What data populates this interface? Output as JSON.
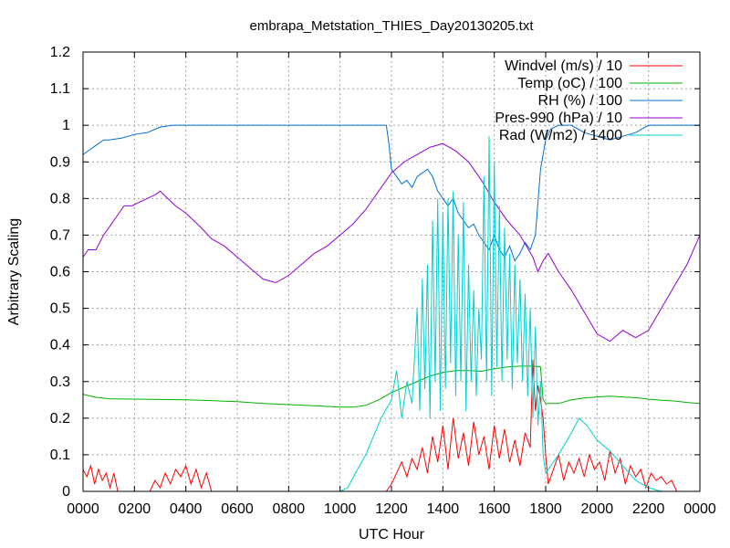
{
  "chart_data": {
    "type": "line",
    "title": "embrapa_Metstation_THIES_Day20130205.txt",
    "xlabel": "UTC Hour",
    "ylabel": "Arbitrary Scaling",
    "xlim": [
      0,
      24
    ],
    "ylim": [
      0,
      1.2
    ],
    "grid": true,
    "legend_position": "top-right",
    "x_ticks": [
      0,
      2,
      4,
      6,
      8,
      10,
      12,
      14,
      16,
      18,
      20,
      22,
      24
    ],
    "x_tick_labels": [
      "0000",
      "0200",
      "0400",
      "0600",
      "0800",
      "1000",
      "1200",
      "1400",
      "1600",
      "1800",
      "2000",
      "2200",
      "0000"
    ],
    "y_ticks": [
      0,
      0.1,
      0.2,
      0.3,
      0.4,
      0.5,
      0.6,
      0.7,
      0.8,
      0.9,
      1,
      1.1,
      1.2
    ],
    "y_tick_labels": [
      "0",
      "0.1",
      "0.2",
      "0.3",
      "0.4",
      "0.5",
      "0.6",
      "0.7",
      "0.8",
      "0.9",
      "1",
      "1.1",
      "1.2"
    ],
    "colors": {
      "axis": "#000000",
      "grid": "#a0a0a0",
      "windvel": "#ff0000",
      "temp": "#00b000",
      "rh": "#0070d0",
      "pres": "#9400d3",
      "rad": "#00d0d0"
    },
    "series": [
      {
        "key": "windvel",
        "name": "Windvel (m/s) / 10",
        "x": [
          0.0,
          0.15,
          0.3,
          0.45,
          0.6,
          0.75,
          0.9,
          1.05,
          1.2,
          1.35,
          2.6,
          2.8,
          3.0,
          3.2,
          3.4,
          3.6,
          3.8,
          4.0,
          4.2,
          4.4,
          4.6,
          4.8,
          5.0,
          11.8,
          12.0,
          12.2,
          12.4,
          12.6,
          12.8,
          13.0,
          13.2,
          13.4,
          13.6,
          13.8,
          14.0,
          14.2,
          14.4,
          14.6,
          14.8,
          15.0,
          15.2,
          15.4,
          15.6,
          15.8,
          16.0,
          16.2,
          16.4,
          16.6,
          16.8,
          17.0,
          17.2,
          17.4,
          17.5,
          17.6,
          17.7,
          17.8,
          17.9,
          18.0,
          18.1,
          18.3,
          18.5,
          18.7,
          18.9,
          19.1,
          19.3,
          19.5,
          19.7,
          19.9,
          20.1,
          20.3,
          20.5,
          20.7,
          20.9,
          21.1,
          21.3,
          21.5,
          21.7,
          21.9,
          22.1,
          22.3,
          22.5,
          22.7,
          22.9,
          23.1,
          23.3,
          23.5,
          23.7,
          24.0
        ],
        "y": [
          0.06,
          0.04,
          0.07,
          0.02,
          0.06,
          0.03,
          0.05,
          0.01,
          0.05,
          0.0,
          0.0,
          0.03,
          0.01,
          0.05,
          0.02,
          0.06,
          0.04,
          0.07,
          0.02,
          0.06,
          0.01,
          0.05,
          0.0,
          0.0,
          0.02,
          0.05,
          0.08,
          0.04,
          0.09,
          0.06,
          0.12,
          0.05,
          0.15,
          0.08,
          0.18,
          0.06,
          0.2,
          0.09,
          0.16,
          0.07,
          0.19,
          0.1,
          0.15,
          0.06,
          0.18,
          0.09,
          0.17,
          0.08,
          0.14,
          0.07,
          0.16,
          0.12,
          0.36,
          0.22,
          0.29,
          0.25,
          0.2,
          0.1,
          0.02,
          0.06,
          0.1,
          0.03,
          0.08,
          0.05,
          0.09,
          0.04,
          0.1,
          0.06,
          0.08,
          0.03,
          0.11,
          0.05,
          0.09,
          0.02,
          0.07,
          0.04,
          0.06,
          0.01,
          0.05,
          0.03,
          0.04,
          0.02,
          0.03,
          0.0,
          0.0,
          0.0,
          0.0,
          0.0
        ]
      },
      {
        "key": "temp",
        "name": "Temp (oC) / 100",
        "x": [
          0.0,
          0.5,
          1.0,
          2.0,
          3.0,
          4.0,
          5.0,
          6.0,
          7.0,
          8.0,
          9.0,
          10.0,
          10.5,
          11.0,
          11.5,
          12.0,
          12.5,
          13.0,
          13.5,
          14.0,
          14.5,
          15.0,
          15.5,
          16.0,
          16.5,
          17.0,
          17.5,
          17.8,
          17.9,
          18.0,
          18.5,
          19.0,
          19.5,
          20.0,
          20.5,
          21.0,
          21.5,
          22.0,
          22.5,
          23.0,
          23.5,
          24.0
        ],
        "y": [
          0.265,
          0.257,
          0.253,
          0.252,
          0.251,
          0.25,
          0.248,
          0.245,
          0.24,
          0.237,
          0.234,
          0.23,
          0.23,
          0.235,
          0.25,
          0.27,
          0.285,
          0.3,
          0.315,
          0.325,
          0.33,
          0.33,
          0.328,
          0.335,
          0.34,
          0.342,
          0.342,
          0.34,
          0.25,
          0.24,
          0.24,
          0.25,
          0.255,
          0.258,
          0.26,
          0.258,
          0.256,
          0.252,
          0.249,
          0.247,
          0.243,
          0.24
        ]
      },
      {
        "key": "rh",
        "name": "RH (%) / 100",
        "x": [
          0.0,
          0.2,
          0.4,
          0.6,
          0.8,
          1.0,
          1.5,
          2.0,
          2.5,
          3.0,
          3.5,
          4.0,
          5.0,
          6.0,
          7.0,
          8.0,
          9.0,
          10.0,
          11.0,
          11.8,
          11.9,
          12.0,
          12.2,
          12.4,
          12.6,
          12.8,
          13.0,
          13.2,
          13.4,
          13.6,
          13.8,
          14.0,
          14.2,
          14.4,
          14.6,
          14.8,
          15.0,
          15.2,
          15.4,
          15.6,
          15.8,
          16.0,
          16.2,
          16.4,
          16.6,
          16.8,
          17.0,
          17.2,
          17.4,
          17.6,
          17.8,
          18.0,
          18.2,
          18.5,
          19.0,
          19.5,
          20.0,
          20.5,
          21.0,
          21.5,
          22.0,
          22.5,
          23.0,
          23.5,
          24.0
        ],
        "y": [
          0.92,
          0.93,
          0.94,
          0.95,
          0.96,
          0.96,
          0.965,
          0.975,
          0.98,
          0.995,
          1.0,
          1.0,
          1.0,
          1.0,
          1.0,
          1.0,
          1.0,
          1.0,
          1.0,
          1.0,
          0.95,
          0.88,
          0.86,
          0.84,
          0.85,
          0.83,
          0.86,
          0.87,
          0.88,
          0.86,
          0.82,
          0.8,
          0.78,
          0.8,
          0.76,
          0.74,
          0.72,
          0.73,
          0.7,
          0.68,
          0.66,
          0.7,
          0.66,
          0.64,
          0.67,
          0.63,
          0.65,
          0.68,
          0.66,
          0.7,
          0.88,
          0.96,
          0.99,
          1.0,
          1.0,
          0.98,
          0.97,
          0.96,
          0.97,
          0.98,
          1.0,
          1.0,
          1.0,
          1.0,
          1.0
        ]
      },
      {
        "key": "pres",
        "name": "Pres-990 (hPa) / 10",
        "x": [
          0.0,
          0.2,
          0.5,
          0.8,
          1.0,
          1.3,
          1.6,
          1.9,
          2.2,
          2.5,
          2.8,
          3.0,
          3.3,
          3.6,
          4.0,
          4.3,
          4.6,
          5.0,
          5.5,
          6.0,
          6.5,
          7.0,
          7.5,
          8.0,
          8.5,
          9.0,
          9.5,
          10.0,
          10.5,
          11.0,
          11.5,
          12.0,
          12.5,
          13.0,
          13.5,
          14.0,
          14.5,
          15.0,
          15.5,
          16.0,
          16.5,
          17.0,
          17.5,
          17.7,
          17.9,
          18.1,
          18.5,
          19.0,
          19.5,
          20.0,
          20.5,
          21.0,
          21.5,
          22.0,
          22.5,
          23.0,
          23.5,
          24.0
        ],
        "y": [
          0.64,
          0.66,
          0.66,
          0.7,
          0.72,
          0.75,
          0.78,
          0.78,
          0.79,
          0.8,
          0.81,
          0.82,
          0.8,
          0.78,
          0.76,
          0.74,
          0.72,
          0.69,
          0.67,
          0.64,
          0.61,
          0.58,
          0.57,
          0.59,
          0.62,
          0.65,
          0.67,
          0.7,
          0.73,
          0.77,
          0.82,
          0.87,
          0.9,
          0.92,
          0.94,
          0.95,
          0.93,
          0.9,
          0.85,
          0.79,
          0.74,
          0.7,
          0.64,
          0.6,
          0.63,
          0.65,
          0.6,
          0.55,
          0.49,
          0.43,
          0.41,
          0.44,
          0.42,
          0.44,
          0.5,
          0.56,
          0.62,
          0.7
        ]
      },
      {
        "key": "rad",
        "name": "Rad (W/m2) / 1400",
        "x": [
          0.0,
          10.0,
          10.3,
          10.6,
          11.0,
          11.3,
          11.6,
          12.0,
          12.2,
          12.4,
          12.6,
          12.8,
          13.0,
          13.1,
          13.2,
          13.3,
          13.4,
          13.5,
          13.6,
          13.7,
          13.8,
          13.9,
          14.0,
          14.1,
          14.2,
          14.3,
          14.4,
          14.5,
          14.6,
          14.7,
          14.8,
          14.9,
          15.0,
          15.1,
          15.2,
          15.3,
          15.4,
          15.5,
          15.6,
          15.7,
          15.8,
          15.9,
          16.0,
          16.1,
          16.2,
          16.3,
          16.4,
          16.5,
          16.6,
          16.7,
          16.8,
          16.9,
          17.0,
          17.1,
          17.2,
          17.3,
          17.4,
          17.5,
          17.6,
          17.7,
          17.8,
          17.9,
          18.0,
          18.5,
          19.0,
          19.3,
          19.6,
          20.0,
          20.5,
          21.0,
          21.5,
          22.0,
          22.5,
          23.0,
          24.0
        ],
        "y": [
          0.0,
          0.0,
          0.01,
          0.05,
          0.1,
          0.15,
          0.2,
          0.25,
          0.33,
          0.2,
          0.3,
          0.24,
          0.5,
          0.22,
          0.58,
          0.28,
          0.62,
          0.2,
          0.74,
          0.3,
          0.8,
          0.22,
          0.76,
          0.28,
          0.8,
          0.35,
          0.82,
          0.26,
          0.7,
          0.3,
          0.79,
          0.22,
          0.62,
          0.3,
          0.55,
          0.26,
          0.5,
          0.36,
          0.86,
          0.3,
          0.97,
          0.26,
          0.9,
          0.34,
          0.78,
          0.3,
          0.72,
          0.36,
          0.65,
          0.28,
          0.62,
          0.35,
          0.58,
          0.3,
          0.54,
          0.26,
          0.5,
          0.2,
          0.45,
          0.18,
          0.3,
          0.1,
          0.05,
          0.1,
          0.16,
          0.2,
          0.18,
          0.14,
          0.11,
          0.07,
          0.03,
          0.01,
          0.0,
          0.0,
          0.0
        ]
      }
    ]
  }
}
